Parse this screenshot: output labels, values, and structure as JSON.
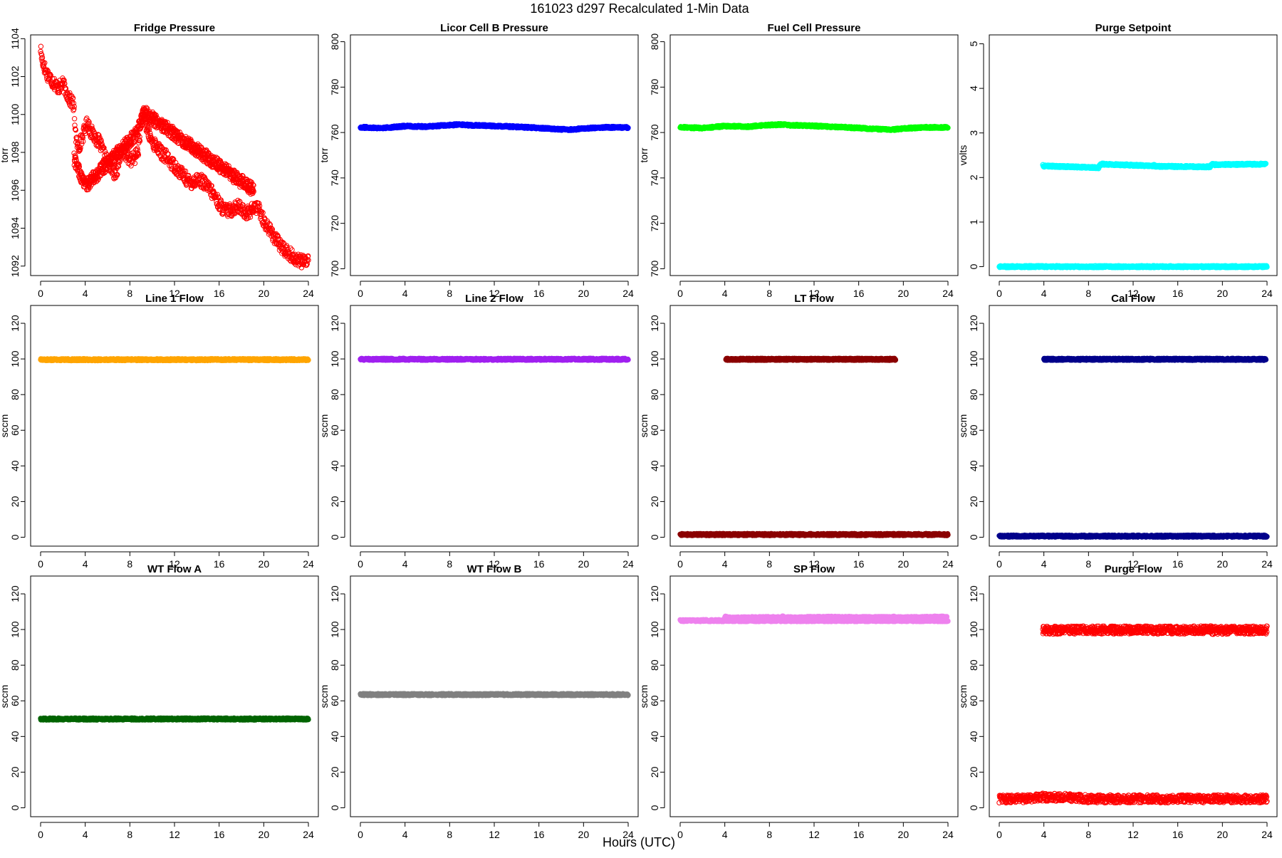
{
  "title": "161023   d297   Recalculated 1-Min Data",
  "xlabel": "Hours (UTC)",
  "chart_data": [
    {
      "type": "scatter",
      "title": "Fridge Pressure",
      "ylabel": "torr",
      "color": "#ff0000",
      "filled": false,
      "xlim": [
        0,
        24
      ],
      "ylim": [
        1091.5,
        1104.2
      ],
      "xticks": [
        0,
        4,
        8,
        12,
        16,
        20,
        24
      ],
      "yticks": [
        1092,
        1094,
        1096,
        1098,
        1100,
        1102,
        1104
      ],
      "series": [
        {
          "x": [
            0.0,
            0.1,
            0.3,
            0.5,
            0.8,
            1.0,
            1.3,
            1.6,
            2.0,
            2.3,
            2.6,
            2.9,
            3.0,
            3.2,
            3.4,
            3.6,
            3.8,
            4.0,
            4.2,
            4.5,
            4.9,
            5.3,
            5.6,
            5.9,
            6.2,
            6.5,
            6.7,
            6.9,
            7.1,
            7.3,
            7.6,
            7.9,
            8.2,
            8.5,
            8.8,
            9.0,
            9.2,
            9.5,
            9.8,
            10.1,
            10.4,
            10.8,
            11.2,
            11.6,
            12.0,
            12.4,
            12.8,
            13.2,
            13.6,
            14.0,
            14.4,
            14.8,
            15.2,
            15.6,
            16.0,
            16.4,
            16.8,
            17.2,
            17.6,
            18.0,
            18.4,
            18.8,
            19.2,
            19.6,
            20.0,
            20.4,
            20.8,
            21.2,
            21.6,
            22.0,
            22.4,
            22.8,
            23.2,
            23.6,
            24.0
          ],
          "y": [
            1103.5,
            1103.0,
            1102.6,
            1102.2,
            1102.0,
            1101.8,
            1101.6,
            1101.4,
            1101.6,
            1101.2,
            1100.8,
            1100.6,
            1100.2,
            1098.6,
            1098.2,
            1098.6,
            1098.9,
            1099.3,
            1099.6,
            1099.1,
            1098.8,
            1098.5,
            1098.0,
            1097.6,
            1097.3,
            1097.0,
            1096.9,
            1097.2,
            1097.8,
            1098.1,
            1097.9,
            1097.7,
            1097.6,
            1097.8,
            1098.2,
            1099.6,
            1100.0,
            1099.3,
            1098.8,
            1098.5,
            1098.3,
            1098.0,
            1097.8,
            1097.5,
            1097.3,
            1097.0,
            1096.8,
            1096.5,
            1096.4,
            1096.6,
            1096.5,
            1096.3,
            1096.0,
            1095.7,
            1095.3,
            1095.0,
            1094.9,
            1095.0,
            1095.2,
            1095.0,
            1094.8,
            1094.9,
            1095.1,
            1095.0,
            1094.4,
            1094.0,
            1093.7,
            1093.3,
            1093.0,
            1092.8,
            1092.6,
            1092.4,
            1092.3,
            1092.2,
            1092.4
          ]
        },
        {
          "x": [
            3.0,
            4.0,
            8.6,
            9.3,
            19.1
          ],
          "y": [
            1097.7,
            1096.2,
            1099.0,
            1100.1,
            1096.0
          ]
        }
      ]
    },
    {
      "type": "scatter",
      "title": "Licor Cell B Pressure",
      "ylabel": "torr",
      "color": "#0000ff",
      "filled": true,
      "xlim": [
        0,
        24
      ],
      "ylim": [
        697,
        803
      ],
      "xticks": [
        0,
        4,
        8,
        12,
        16,
        20,
        24
      ],
      "yticks": [
        700,
        720,
        740,
        760,
        780,
        800
      ],
      "series": [
        {
          "x": [
            0,
            2,
            4,
            6,
            8,
            9,
            10,
            12,
            14,
            16,
            18,
            19,
            20,
            22,
            24
          ],
          "y": [
            762.3,
            762.0,
            762.8,
            762.6,
            763.3,
            763.5,
            763.2,
            762.9,
            762.5,
            762.0,
            761.4,
            761.3,
            761.8,
            762.3,
            762.2
          ]
        }
      ]
    },
    {
      "type": "scatter",
      "title": "Fuel Cell Pressure",
      "ylabel": "torr",
      "color": "#00ff00",
      "filled": true,
      "xlim": [
        0,
        24
      ],
      "ylim": [
        697,
        803
      ],
      "xticks": [
        0,
        4,
        8,
        12,
        16,
        20,
        24
      ],
      "yticks": [
        700,
        720,
        740,
        760,
        780,
        800
      ],
      "series": [
        {
          "x": [
            0,
            2,
            4,
            6,
            8,
            9,
            10,
            12,
            14,
            16,
            18,
            19,
            20,
            22,
            24
          ],
          "y": [
            762.3,
            762.0,
            762.8,
            762.6,
            763.3,
            763.5,
            763.2,
            762.9,
            762.5,
            762.0,
            761.4,
            761.3,
            761.8,
            762.3,
            762.2
          ]
        }
      ]
    },
    {
      "type": "scatter",
      "title": "Purge Setpoint",
      "ylabel": "volts",
      "color": "#00ffff",
      "filled": false,
      "xlim": [
        0,
        24
      ],
      "ylim": [
        -0.2,
        5.2
      ],
      "xticks": [
        0,
        4,
        8,
        12,
        16,
        20,
        24
      ],
      "yticks": [
        0,
        1,
        2,
        3,
        4,
        5
      ],
      "series": [
        {
          "x": [
            0,
            24
          ],
          "y": [
            0,
            0
          ]
        },
        {
          "x": [
            3.9,
            4.0,
            4.1,
            8.9,
            9.0,
            9.1,
            9.2,
            13.8,
            13.9,
            14.0,
            18.9,
            19.0,
            19.1,
            19.3,
            23.9
          ],
          "y": [
            2.28,
            2.25,
            2.26,
            2.22,
            2.27,
            2.29,
            2.3,
            2.26,
            2.28,
            2.25,
            2.24,
            2.28,
            2.3,
            2.29,
            2.3
          ]
        }
      ]
    },
    {
      "type": "scatter",
      "title": "Line 1 Flow",
      "ylabel": "sccm",
      "color": "#ffa500",
      "filled": true,
      "xlim": [
        0,
        24
      ],
      "ylim": [
        -5,
        130
      ],
      "xticks": [
        0,
        4,
        8,
        12,
        16,
        20,
        24
      ],
      "yticks": [
        0,
        20,
        40,
        60,
        80,
        100,
        120
      ],
      "series": [
        {
          "x": [
            0,
            24
          ],
          "y": [
            99.6,
            99.6
          ]
        }
      ]
    },
    {
      "type": "scatter",
      "title": "Line 2 Flow",
      "ylabel": "sccm",
      "color": "#a020f0",
      "filled": true,
      "xlim": [
        0,
        24
      ],
      "ylim": [
        -5,
        130
      ],
      "xticks": [
        0,
        4,
        8,
        12,
        16,
        20,
        24
      ],
      "yticks": [
        0,
        20,
        40,
        60,
        80,
        100,
        120
      ],
      "series": [
        {
          "x": [
            0,
            24
          ],
          "y": [
            99.8,
            99.8
          ]
        }
      ]
    },
    {
      "type": "scatter",
      "title": "LT Flow",
      "ylabel": "sccm",
      "color": "#8b0000",
      "filled": true,
      "xlim": [
        0,
        24
      ],
      "ylim": [
        -5,
        130
      ],
      "xticks": [
        0,
        4,
        8,
        12,
        16,
        20,
        24
      ],
      "yticks": [
        0,
        20,
        40,
        60,
        80,
        100,
        120
      ],
      "series": [
        {
          "x": [
            0,
            24
          ],
          "y": [
            1.5,
            1.5
          ]
        },
        {
          "x": [
            4.1,
            4.2,
            4.3,
            19.1,
            19.2,
            19.3
          ],
          "y": [
            99.8,
            99.8,
            99.8,
            99.8,
            99.8,
            99.8
          ]
        }
      ]
    },
    {
      "type": "scatter",
      "title": "Cal Flow",
      "ylabel": "sccm",
      "color": "#00008b",
      "filled": true,
      "xlim": [
        0,
        24
      ],
      "ylim": [
        -5,
        130
      ],
      "xticks": [
        0,
        4,
        8,
        12,
        16,
        20,
        24
      ],
      "yticks": [
        0,
        20,
        40,
        60,
        80,
        100,
        120
      ],
      "series": [
        {
          "x": [
            0,
            24
          ],
          "y": [
            0.6,
            0.6
          ]
        },
        {
          "x": [
            4.0,
            4.1,
            4.2,
            9.0,
            9.1,
            9.2,
            9.3,
            13.8,
            13.9,
            14.0,
            19.0,
            19.1,
            19.2,
            19.4,
            23.9
          ],
          "y": [
            99.8,
            99.8,
            99.8,
            99.8,
            99.8,
            99.8,
            99.8,
            99.8,
            99.8,
            99.8,
            99.8,
            99.8,
            99.8,
            99.8,
            99.8
          ]
        }
      ]
    },
    {
      "type": "scatter",
      "title": "WT Flow A",
      "ylabel": "sccm",
      "color": "#006400",
      "filled": true,
      "xlim": [
        0,
        24
      ],
      "ylim": [
        -5,
        130
      ],
      "xticks": [
        0,
        4,
        8,
        12,
        16,
        20,
        24
      ],
      "yticks": [
        0,
        20,
        40,
        60,
        80,
        100,
        120
      ],
      "series": [
        {
          "x": [
            0,
            24
          ],
          "y": [
            49.8,
            49.8
          ]
        }
      ]
    },
    {
      "type": "scatter",
      "title": "WT Flow B",
      "ylabel": "sccm",
      "color": "#808080",
      "filled": true,
      "xlim": [
        0,
        24
      ],
      "ylim": [
        -5,
        130
      ],
      "xticks": [
        0,
        4,
        8,
        12,
        16,
        20,
        24
      ],
      "yticks": [
        0,
        20,
        40,
        60,
        80,
        100,
        120
      ],
      "series": [
        {
          "x": [
            0,
            24
          ],
          "y": [
            63.5,
            63.5
          ]
        }
      ]
    },
    {
      "type": "scatter",
      "title": "SP Flow",
      "ylabel": "sccm",
      "color": "#ee82ee",
      "filled": true,
      "xlim": [
        0,
        24
      ],
      "ylim": [
        -5,
        130
      ],
      "xticks": [
        0,
        4,
        8,
        12,
        16,
        20,
        24
      ],
      "yticks": [
        0,
        20,
        40,
        60,
        80,
        100,
        120
      ],
      "series": [
        {
          "x": [
            0,
            24
          ],
          "y": [
            105.0,
            105.0
          ]
        },
        {
          "x": [
            4.0,
            4.1,
            4.2,
            4.3,
            9.0,
            9.1,
            9.2,
            9.3,
            9.4,
            13.9,
            14.0,
            14.1,
            19.0,
            19.1,
            19.2,
            19.3,
            23.9
          ],
          "y": [
            106.8,
            107.0,
            106.9,
            106.5,
            106.8,
            107.0,
            107.1,
            106.9,
            106.6,
            106.9,
            107.0,
            106.8,
            106.7,
            107.0,
            106.9,
            106.6,
            107.0
          ]
        }
      ]
    },
    {
      "type": "scatter",
      "title": "Purge Flow",
      "ylabel": "sccm",
      "color": "#ff0000",
      "filled": false,
      "xlim": [
        0,
        24
      ],
      "ylim": [
        -5,
        130
      ],
      "xticks": [
        0,
        4,
        8,
        12,
        16,
        20,
        24
      ],
      "yticks": [
        0,
        20,
        40,
        60,
        80,
        100,
        120
      ],
      "series": [
        {
          "x": [
            0,
            2,
            4,
            6,
            8,
            10,
            12,
            14,
            16,
            18,
            20,
            22,
            24
          ],
          "y": [
            5,
            5,
            6,
            6,
            5,
            5,
            5,
            5,
            5,
            5,
            5,
            5,
            5
          ]
        },
        {
          "x": [
            3.9,
            4.0,
            4.1,
            8.9,
            9.0,
            9.1,
            13.8,
            13.9,
            14.0,
            18.9,
            19.0,
            19.2,
            19.3,
            23.9,
            24.0
          ],
          "y": [
            99.8,
            100.0,
            99.6,
            99.8,
            100.0,
            99.7,
            99.8,
            100.0,
            99.6,
            99.8,
            100.0,
            99.2,
            99.5,
            99.7,
            100.4
          ]
        }
      ]
    }
  ]
}
